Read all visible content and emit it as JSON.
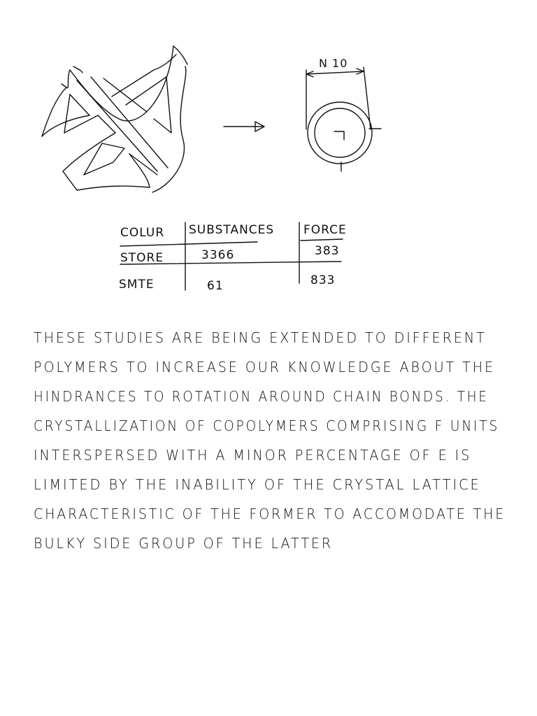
{
  "diagram": {
    "dimension_label": "N 10",
    "center_label": "Γ"
  },
  "table": {
    "headers": [
      "COLUR",
      "SUBSTANCES",
      "FORCE"
    ],
    "rows": [
      [
        "STORE",
        "3366",
        "383"
      ],
      [
        "SMTE",
        "61",
        "833"
      ]
    ]
  },
  "paragraph": {
    "lines": [
      "THESE STUDIES ARE BEING EXTENDED TO DIFFERENT",
      "POLYMERS TO INCREASE OUR KNOWLEDGE ABOUT THE",
      "HINDRANCES TO ROTATION AROUND CHAIN BONDS. THE",
      "CRYSTALLIZATION OF COPOLYMERS COMPRISING F UNITS",
      "INTERSPERSED WITH A MINOR PERCENTAGE OF E IS",
      "LIMITED BY THE INABILITY OF THE CRYSTAL LATTICE",
      "CHARACTERISTIC OF THE FORMER TO ACCOMODATE THE",
      "BULKY SIDE GROUP OF THE LATTER"
    ]
  }
}
